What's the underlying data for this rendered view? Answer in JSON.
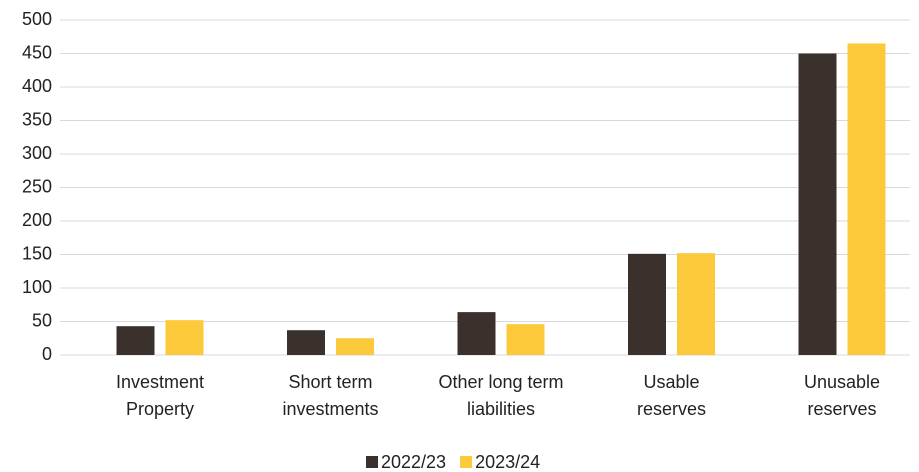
{
  "chart_data": {
    "type": "bar",
    "categories": [
      "Investment\nProperty",
      "Short term\ninvestments",
      "Other long term\nliabilities",
      "Usable\nreserves",
      "Unusable\nreserves"
    ],
    "series": [
      {
        "name": "2022/23",
        "color": "#3a302c",
        "values": [
          43,
          37,
          64,
          151,
          450
        ]
      },
      {
        "name": "2023/24",
        "color": "#fcc93a",
        "values": [
          52,
          25,
          46,
          152,
          465
        ]
      }
    ],
    "ylim": [
      0,
      500
    ],
    "yticks": [
      0,
      50,
      100,
      150,
      200,
      250,
      300,
      350,
      400,
      450,
      500
    ],
    "grid": true,
    "legend": "bottom"
  }
}
